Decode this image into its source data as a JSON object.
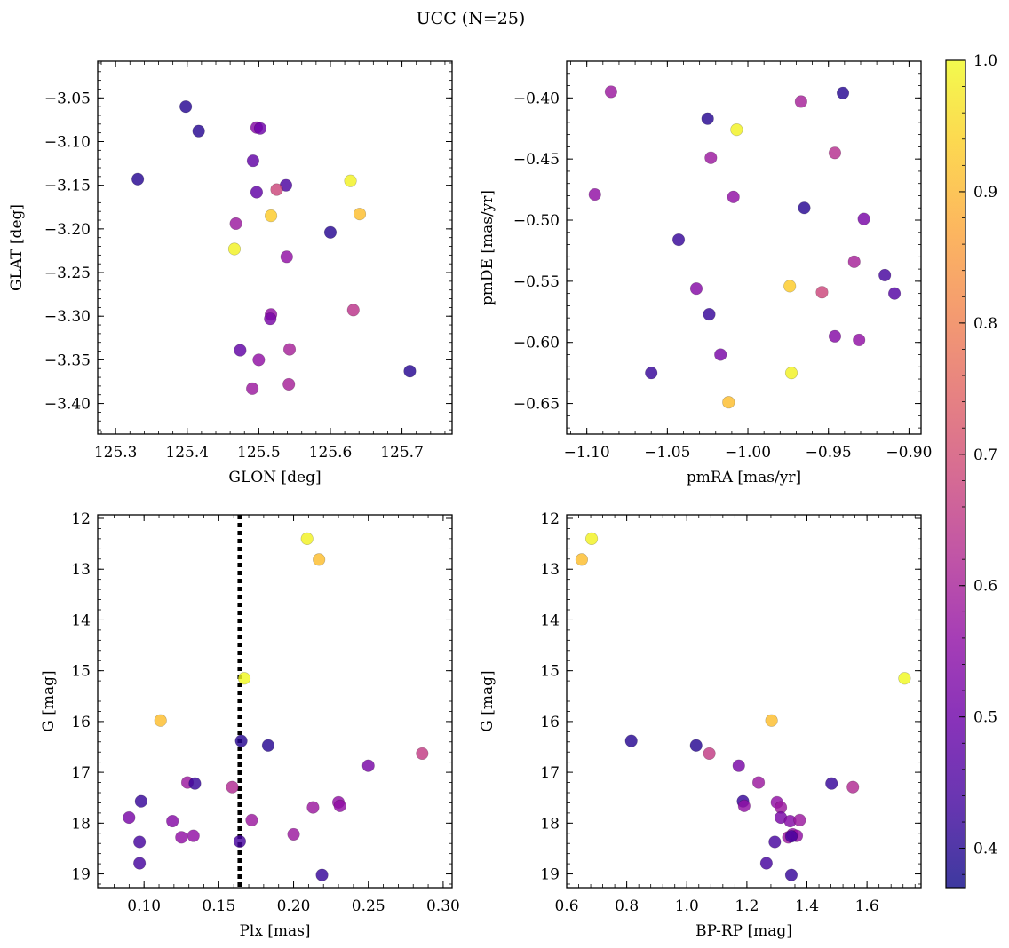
{
  "figure": {
    "title": "UCC (N=25)"
  },
  "colormap": {
    "name": "plasma",
    "range": [
      0.37,
      1.0
    ],
    "ticks": [
      0.4,
      0.5,
      0.6,
      0.7,
      0.8,
      0.9,
      1.0
    ],
    "tick_labels": [
      "0.4",
      "0.5",
      "0.6",
      "0.7",
      "0.8",
      "0.9",
      "1.0"
    ]
  },
  "chart_data": [
    {
      "type": "scatter",
      "xlabel": "GLON [deg]",
      "ylabel": "GLAT [deg]",
      "xlim": [
        125.275,
        125.77
      ],
      "ylim": [
        -3.435,
        -3.008
      ],
      "xticks": [
        125.3,
        125.4,
        125.5,
        125.6,
        125.7
      ],
      "xtick_labels": [
        "125.3",
        "125.4",
        "125.5",
        "125.6",
        "125.7"
      ],
      "yticks": [
        -3.05,
        -3.1,
        -3.15,
        -3.2,
        -3.25,
        -3.3,
        -3.35,
        -3.4
      ],
      "ytick_labels": [
        "−3.05",
        "−3.10",
        "−3.15",
        "−3.20",
        "−3.25",
        "−3.30",
        "−3.35",
        "−3.40"
      ],
      "points": [
        {
          "x": 125.398,
          "y": -3.06,
          "c": 0.4
        },
        {
          "x": 125.416,
          "y": -3.088,
          "c": 0.4
        },
        {
          "x": 125.331,
          "y": -3.143,
          "c": 0.4
        },
        {
          "x": 125.497,
          "y": -3.084,
          "c": 0.54
        },
        {
          "x": 125.502,
          "y": -3.085,
          "c": 0.5
        },
        {
          "x": 125.492,
          "y": -3.122,
          "c": 0.48
        },
        {
          "x": 125.497,
          "y": -3.158,
          "c": 0.48
        },
        {
          "x": 125.538,
          "y": -3.15,
          "c": 0.45
        },
        {
          "x": 125.525,
          "y": -3.155,
          "c": 0.68
        },
        {
          "x": 125.628,
          "y": -3.145,
          "c": 0.99
        },
        {
          "x": 125.517,
          "y": -3.185,
          "c": 0.93
        },
        {
          "x": 125.641,
          "y": -3.183,
          "c": 0.91
        },
        {
          "x": 125.468,
          "y": -3.194,
          "c": 0.58
        },
        {
          "x": 125.6,
          "y": -3.204,
          "c": 0.4
        },
        {
          "x": 125.466,
          "y": -3.223,
          "c": 0.99
        },
        {
          "x": 125.539,
          "y": -3.232,
          "c": 0.56
        },
        {
          "x": 125.517,
          "y": -3.298,
          "c": 0.56
        },
        {
          "x": 125.516,
          "y": -3.303,
          "c": 0.52
        },
        {
          "x": 125.632,
          "y": -3.293,
          "c": 0.64
        },
        {
          "x": 125.474,
          "y": -3.339,
          "c": 0.48
        },
        {
          "x": 125.5,
          "y": -3.35,
          "c": 0.56
        },
        {
          "x": 125.543,
          "y": -3.338,
          "c": 0.6
        },
        {
          "x": 125.491,
          "y": -3.383,
          "c": 0.58
        },
        {
          "x": 125.542,
          "y": -3.378,
          "c": 0.6
        },
        {
          "x": 125.711,
          "y": -3.363,
          "c": 0.4
        }
      ]
    },
    {
      "type": "scatter",
      "xlabel": "pmRA [mas/yr]",
      "ylabel": "pmDE [mas/yr]",
      "xlim": [
        -1.1125,
        -0.8925
      ],
      "ylim": [
        -0.675,
        -0.37
      ],
      "xticks": [
        -1.1,
        -1.05,
        -1.0,
        -0.95,
        -0.9
      ],
      "xtick_labels": [
        "−1.10",
        "−1.05",
        "−1.00",
        "−0.95",
        "−0.90"
      ],
      "yticks": [
        -0.4,
        -0.45,
        -0.5,
        -0.55,
        -0.6,
        -0.65
      ],
      "ytick_labels": [
        "−0.40",
        "−0.45",
        "−0.50",
        "−0.55",
        "−0.60",
        "−0.65"
      ],
      "points": [
        {
          "x": -1.085,
          "y": -0.395,
          "c": 0.58
        },
        {
          "x": -0.941,
          "y": -0.396,
          "c": 0.4
        },
        {
          "x": -0.967,
          "y": -0.403,
          "c": 0.6
        },
        {
          "x": -1.025,
          "y": -0.417,
          "c": 0.4
        },
        {
          "x": -1.007,
          "y": -0.426,
          "c": 0.99
        },
        {
          "x": -1.023,
          "y": -0.449,
          "c": 0.58
        },
        {
          "x": -0.946,
          "y": -0.445,
          "c": 0.63
        },
        {
          "x": -1.095,
          "y": -0.479,
          "c": 0.56
        },
        {
          "x": -1.009,
          "y": -0.481,
          "c": 0.56
        },
        {
          "x": -0.965,
          "y": -0.49,
          "c": 0.4
        },
        {
          "x": -0.928,
          "y": -0.499,
          "c": 0.52
        },
        {
          "x": -1.043,
          "y": -0.516,
          "c": 0.42
        },
        {
          "x": -0.934,
          "y": -0.534,
          "c": 0.6
        },
        {
          "x": -0.915,
          "y": -0.545,
          "c": 0.44
        },
        {
          "x": -1.032,
          "y": -0.556,
          "c": 0.54
        },
        {
          "x": -0.974,
          "y": -0.554,
          "c": 0.93
        },
        {
          "x": -0.954,
          "y": -0.559,
          "c": 0.68
        },
        {
          "x": -0.909,
          "y": -0.56,
          "c": 0.46
        },
        {
          "x": -1.024,
          "y": -0.577,
          "c": 0.42
        },
        {
          "x": -0.946,
          "y": -0.595,
          "c": 0.54
        },
        {
          "x": -0.931,
          "y": -0.598,
          "c": 0.56
        },
        {
          "x": -1.017,
          "y": -0.61,
          "c": 0.52
        },
        {
          "x": -1.06,
          "y": -0.625,
          "c": 0.42
        },
        {
          "x": -0.973,
          "y": -0.625,
          "c": 0.99
        },
        {
          "x": -1.012,
          "y": -0.649,
          "c": 0.91
        }
      ]
    },
    {
      "type": "scatter",
      "xlabel": "Plx [mas]",
      "ylabel": "G [mag]",
      "xlim": [
        0.069,
        0.306
      ],
      "ylim": [
        19.27,
        11.93
      ],
      "xticks": [
        0.1,
        0.15,
        0.2,
        0.25,
        0.3
      ],
      "xtick_labels": [
        "0.10",
        "0.15",
        "0.20",
        "0.25",
        "0.30"
      ],
      "yticks": [
        12,
        13,
        14,
        15,
        16,
        17,
        18,
        19
      ],
      "ytick_labels": [
        "12",
        "13",
        "14",
        "15",
        "16",
        "17",
        "18",
        "19"
      ],
      "reference_line": {
        "x": 0.164
      },
      "points": [
        {
          "x": 0.209,
          "y": 12.4,
          "c": 0.99
        },
        {
          "x": 0.217,
          "y": 12.81,
          "c": 0.91
        },
        {
          "x": 0.167,
          "y": 15.15,
          "c": 1.0
        },
        {
          "x": 0.111,
          "y": 15.98,
          "c": 0.91
        },
        {
          "x": 0.165,
          "y": 16.38,
          "c": 0.4
        },
        {
          "x": 0.183,
          "y": 16.47,
          "c": 0.4
        },
        {
          "x": 0.286,
          "y": 16.63,
          "c": 0.66
        },
        {
          "x": 0.25,
          "y": 16.87,
          "c": 0.52
        },
        {
          "x": 0.129,
          "y": 17.2,
          "c": 0.58
        },
        {
          "x": 0.134,
          "y": 17.22,
          "c": 0.42
        },
        {
          "x": 0.159,
          "y": 17.29,
          "c": 0.62
        },
        {
          "x": 0.098,
          "y": 17.57,
          "c": 0.42
        },
        {
          "x": 0.23,
          "y": 17.59,
          "c": 0.56
        },
        {
          "x": 0.231,
          "y": 17.66,
          "c": 0.56
        },
        {
          "x": 0.213,
          "y": 17.69,
          "c": 0.58
        },
        {
          "x": 0.09,
          "y": 17.89,
          "c": 0.52
        },
        {
          "x": 0.119,
          "y": 17.96,
          "c": 0.54
        },
        {
          "x": 0.172,
          "y": 17.94,
          "c": 0.58
        },
        {
          "x": 0.2,
          "y": 18.22,
          "c": 0.58
        },
        {
          "x": 0.125,
          "y": 18.28,
          "c": 0.56
        },
        {
          "x": 0.133,
          "y": 18.25,
          "c": 0.56
        },
        {
          "x": 0.097,
          "y": 18.37,
          "c": 0.44
        },
        {
          "x": 0.164,
          "y": 18.36,
          "c": 0.44
        },
        {
          "x": 0.097,
          "y": 18.79,
          "c": 0.44
        },
        {
          "x": 0.219,
          "y": 19.02,
          "c": 0.42
        }
      ]
    },
    {
      "type": "scatter",
      "xlabel": "BP-RP [mag]",
      "ylabel": "G [mag]",
      "xlim": [
        0.6,
        1.78
      ],
      "ylim": [
        19.27,
        11.93
      ],
      "xticks": [
        0.6,
        0.8,
        1.0,
        1.2,
        1.4,
        1.6
      ],
      "xtick_labels": [
        "0.6",
        "0.8",
        "1.0",
        "1.2",
        "1.4",
        "1.6"
      ],
      "yticks": [
        12,
        13,
        14,
        15,
        16,
        17,
        18,
        19
      ],
      "ytick_labels": [
        "12",
        "13",
        "14",
        "15",
        "16",
        "17",
        "18",
        "19"
      ],
      "points": [
        {
          "x": 0.683,
          "y": 12.4,
          "c": 0.99
        },
        {
          "x": 0.65,
          "y": 12.81,
          "c": 0.91
        },
        {
          "x": 1.725,
          "y": 15.15,
          "c": 1.0
        },
        {
          "x": 1.282,
          "y": 15.98,
          "c": 0.91
        },
        {
          "x": 0.815,
          "y": 16.38,
          "c": 0.4
        },
        {
          "x": 1.031,
          "y": 16.47,
          "c": 0.4
        },
        {
          "x": 1.075,
          "y": 16.63,
          "c": 0.66
        },
        {
          "x": 1.173,
          "y": 16.87,
          "c": 0.52
        },
        {
          "x": 1.239,
          "y": 17.2,
          "c": 0.58
        },
        {
          "x": 1.482,
          "y": 17.22,
          "c": 0.42
        },
        {
          "x": 1.553,
          "y": 17.29,
          "c": 0.62
        },
        {
          "x": 1.187,
          "y": 17.57,
          "c": 0.42
        },
        {
          "x": 1.3,
          "y": 17.59,
          "c": 0.56
        },
        {
          "x": 1.191,
          "y": 17.66,
          "c": 0.56
        },
        {
          "x": 1.313,
          "y": 17.69,
          "c": 0.58
        },
        {
          "x": 1.313,
          "y": 17.89,
          "c": 0.52
        },
        {
          "x": 1.344,
          "y": 17.96,
          "c": 0.54
        },
        {
          "x": 1.376,
          "y": 17.94,
          "c": 0.58
        },
        {
          "x": 1.338,
          "y": 18.28,
          "c": 0.58
        },
        {
          "x": 1.352,
          "y": 18.22,
          "c": 0.56
        },
        {
          "x": 1.366,
          "y": 18.25,
          "c": 0.56
        },
        {
          "x": 1.293,
          "y": 18.37,
          "c": 0.44
        },
        {
          "x": 1.348,
          "y": 18.26,
          "c": 0.44
        },
        {
          "x": 1.265,
          "y": 18.79,
          "c": 0.44
        },
        {
          "x": 1.348,
          "y": 19.02,
          "c": 0.42
        }
      ]
    }
  ]
}
